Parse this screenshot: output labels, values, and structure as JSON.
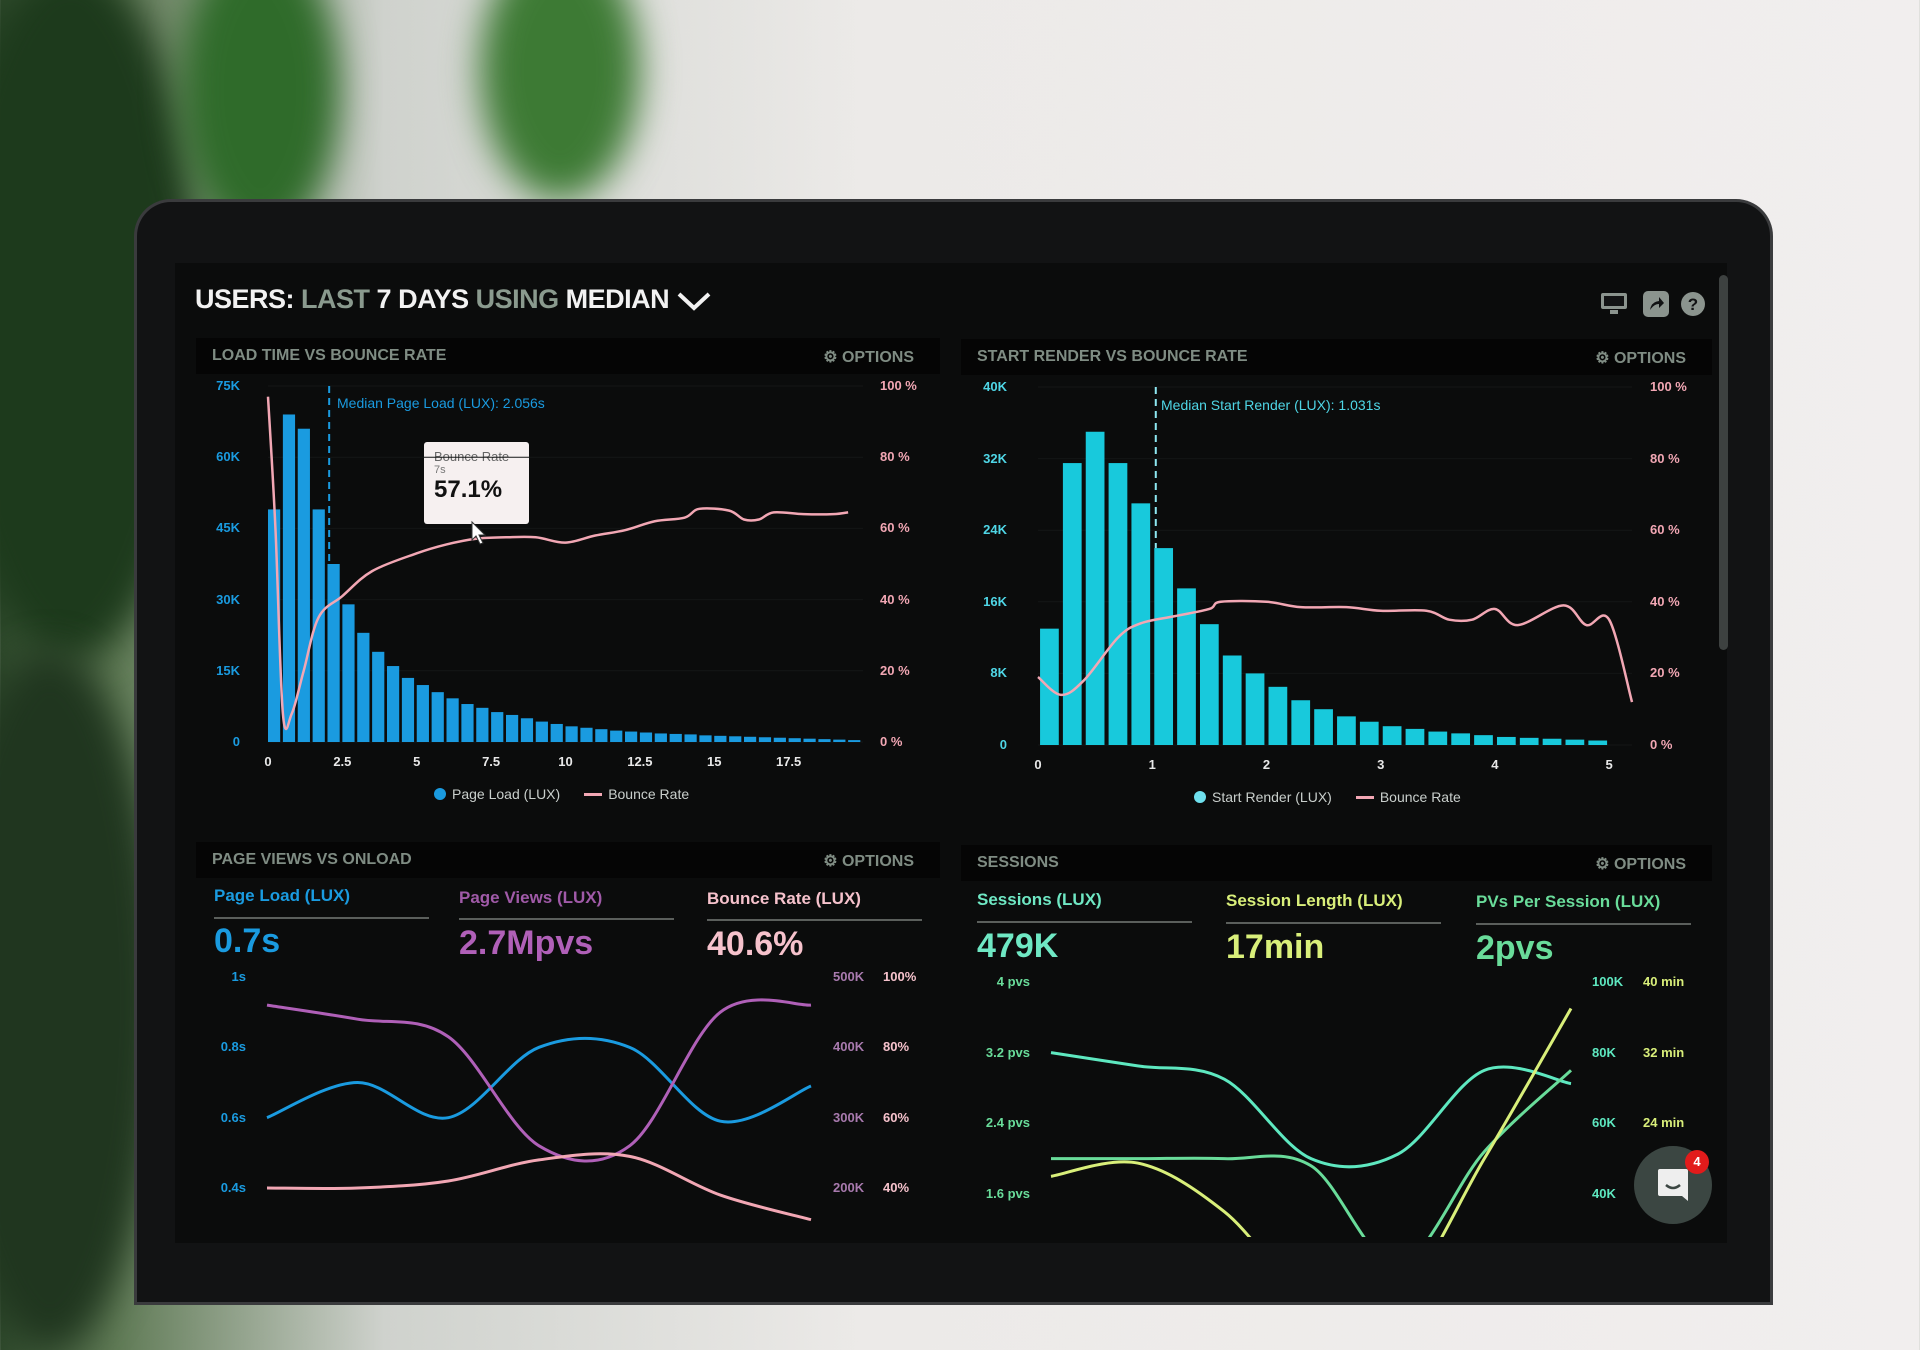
{
  "header": {
    "title_parts": [
      "USERS:",
      "LAST",
      "7 DAYS",
      "USING",
      "MEDIAN"
    ],
    "icons": [
      "monitor-icon",
      "share-icon",
      "help-icon"
    ]
  },
  "colors": {
    "blue": "#1a9be0",
    "cyan": "#18c9dc",
    "pink": "#f2a7b4",
    "purple": "#b060b8",
    "teal": "#5ee8c0",
    "green": "#69dc9a",
    "yellow": "#d9ef7a",
    "muted": "#7f8c83"
  },
  "panels": {
    "load": {
      "title": "LOAD TIME VS BOUNCE RATE",
      "options": "OPTIONS",
      "median": "Median Page Load (LUX): 2.056s",
      "tooltip": {
        "title": "Bounce Rate",
        "sub": "7s",
        "value": "57.1%"
      },
      "legend": [
        "Page Load (LUX)",
        "Bounce Rate"
      ]
    },
    "render": {
      "title": "START RENDER VS BOUNCE RATE",
      "options": "OPTIONS",
      "median": "Median Start Render (LUX): 1.031s",
      "legend": [
        "Start Render (LUX)",
        "Bounce Rate"
      ]
    },
    "views": {
      "title": "PAGE VIEWS VS ONLOAD",
      "options": "OPTIONS",
      "metrics": [
        {
          "label": "Page Load (LUX)",
          "value": "0.7s"
        },
        {
          "label": "Page Views (LUX)",
          "value": "2.7Mpvs"
        },
        {
          "label": "Bounce Rate (LUX)",
          "value": "40.6%"
        }
      ]
    },
    "sessions": {
      "title": "SESSIONS",
      "options": "OPTIONS",
      "metrics": [
        {
          "label": "Sessions (LUX)",
          "value": "479K"
        },
        {
          "label": "Session Length (LUX)",
          "value": "17min"
        },
        {
          "label": "PVs Per Session (LUX)",
          "value": "2pvs"
        }
      ]
    }
  },
  "chat": {
    "badge": "4"
  },
  "chart_data": [
    {
      "type": "bar",
      "title": "LOAD TIME VS BOUNCE RATE",
      "xlim": [
        0,
        20
      ],
      "x_ticks": [
        "0",
        "2.5",
        "5",
        "7.5",
        "10",
        "12.5",
        "15",
        "17.5"
      ],
      "y_left": {
        "ticks": [
          "0",
          "15K",
          "30K",
          "45K",
          "60K",
          "75K"
        ],
        "lim": [
          0,
          75000
        ]
      },
      "y_right": {
        "ticks": [
          "0 %",
          "20 %",
          "40 %",
          "60 %",
          "80 %",
          "100 %"
        ],
        "lim": [
          0,
          100
        ]
      },
      "median_x": 2.056,
      "series": [
        {
          "name": "Page Load (LUX)",
          "type": "bar",
          "x": [
            0,
            0.5,
            1,
            1.5,
            2,
            2.5,
            3,
            3.5,
            4,
            4.5,
            5,
            5.5,
            6,
            6.5,
            7,
            7.5,
            8,
            8.5,
            9,
            9.5,
            10,
            10.5,
            11,
            11.5,
            12,
            12.5,
            13,
            13.5,
            14,
            14.5,
            15,
            15.5,
            16,
            16.5,
            17,
            17.5,
            18,
            18.5,
            19,
            19.5
          ],
          "values": [
            49000,
            69000,
            66000,
            49000,
            37500,
            29000,
            23000,
            19000,
            16000,
            13500,
            12000,
            10500,
            9200,
            8000,
            7200,
            6300,
            5700,
            5000,
            4300,
            3800,
            3300,
            3000,
            2700,
            2400,
            2200,
            2000,
            1800,
            1700,
            1600,
            1400,
            1300,
            1200,
            1100,
            1000,
            900,
            800,
            700,
            600,
            500,
            400
          ]
        },
        {
          "name": "Bounce Rate",
          "type": "line",
          "x": [
            0,
            0.25,
            0.5,
            0.8,
            1.2,
            1.7,
            2.5,
            3.5,
            5,
            6,
            7,
            8,
            9,
            10,
            11,
            12,
            13,
            14,
            14.5,
            15.5,
            16,
            16.5,
            17,
            18,
            19,
            19.5
          ],
          "values": [
            97,
            60,
            8,
            8,
            20,
            35,
            41,
            48,
            53,
            55.5,
            57.1,
            57.5,
            57.5,
            56,
            58,
            59.5,
            62,
            63,
            65.5,
            65,
            62.5,
            62.5,
            64.5,
            64,
            64,
            64.5
          ]
        }
      ]
    },
    {
      "type": "bar",
      "title": "START RENDER VS BOUNCE RATE",
      "xlim": [
        0,
        5.2
      ],
      "x_ticks": [
        "0",
        "1",
        "2",
        "3",
        "4",
        "5"
      ],
      "y_left": {
        "ticks": [
          "0",
          "8K",
          "16K",
          "24K",
          "32K",
          "40K"
        ],
        "lim": [
          0,
          40000
        ]
      },
      "y_right": {
        "ticks": [
          "0 %",
          "20 %",
          "40 %",
          "60 %",
          "80 %",
          "100 %"
        ],
        "lim": [
          0,
          100
        ]
      },
      "median_x": 1.031,
      "series": [
        {
          "name": "Start Render (LUX)",
          "type": "bar",
          "x": [
            0.1,
            0.3,
            0.5,
            0.7,
            0.9,
            1.1,
            1.3,
            1.5,
            1.7,
            1.9,
            2.1,
            2.3,
            2.5,
            2.7,
            2.9,
            3.1,
            3.3,
            3.5,
            3.7,
            3.9,
            4.1,
            4.3,
            4.5,
            4.7,
            4.9
          ],
          "values": [
            13000,
            31500,
            35000,
            31500,
            27000,
            22000,
            17500,
            13500,
            10000,
            8000,
            6500,
            5000,
            4000,
            3200,
            2600,
            2100,
            1800,
            1500,
            1300,
            1100,
            900,
            800,
            700,
            600,
            500
          ]
        },
        {
          "name": "Bounce Rate",
          "type": "line",
          "x": [
            0,
            0.2,
            0.4,
            0.7,
            0.9,
            1.2,
            1.5,
            1.6,
            2,
            2.3,
            2.7,
            3,
            3.4,
            3.6,
            3.8,
            4,
            4.2,
            4.6,
            4.8,
            5,
            5.2
          ],
          "values": [
            19,
            14,
            18,
            30,
            34,
            36,
            38,
            40,
            40,
            38.5,
            38.5,
            37.5,
            37.5,
            35,
            35,
            38,
            33.5,
            39,
            33.5,
            35,
            12
          ]
        }
      ]
    },
    {
      "type": "line",
      "title": "PAGE VIEWS VS ONLOAD",
      "x": [
        0,
        1,
        2,
        3,
        4,
        5,
        6
      ],
      "y_left": {
        "ticks": [
          "0.4s",
          "0.6s",
          "0.8s",
          "1s"
        ],
        "lim": [
          0.4,
          1
        ]
      },
      "y_right_1": {
        "ticks": [
          "200K",
          "300K",
          "400K",
          "500K"
        ],
        "lim": [
          200000,
          500000
        ]
      },
      "y_right_2": {
        "ticks": [
          "40%",
          "60%",
          "80%",
          "100%"
        ],
        "lim": [
          40,
          100
        ]
      },
      "series": [
        {
          "name": "Page Load (LUX)",
          "axis": "left",
          "values": [
            0.6,
            0.7,
            0.6,
            0.8,
            0.8,
            0.59,
            0.69
          ]
        },
        {
          "name": "Page Views (LUX)",
          "axis": "right_1",
          "values": [
            460000,
            440000,
            415000,
            260000,
            260000,
            450000,
            460000
          ]
        },
        {
          "name": "Bounce Rate (LUX)",
          "axis": "right_2",
          "values": [
            40,
            40,
            42,
            48,
            49,
            38,
            31
          ]
        }
      ]
    },
    {
      "type": "line",
      "title": "SESSIONS",
      "x": [
        0,
        1,
        2,
        3,
        4,
        5,
        6
      ],
      "y_left": {
        "ticks": [
          "1.6 pvs",
          "2.4 pvs",
          "3.2 pvs",
          "4 pvs"
        ],
        "lim": [
          1.6,
          4
        ]
      },
      "y_right_1": {
        "ticks": [
          "40K",
          "60K",
          "80K",
          "100K"
        ],
        "lim": [
          40000,
          100000
        ]
      },
      "y_right_2": {
        "ticks": [
          "24 min",
          "32 min",
          "40 min"
        ],
        "lim": [
          16,
          40
        ]
      },
      "series": [
        {
          "name": "PVs Per Session (LUX)",
          "axis": "left",
          "values": [
            3.2,
            3.05,
            2.9,
            2.0,
            2.05,
            3.0,
            2.85
          ]
        },
        {
          "name": "Sessions (LUX)",
          "axis": "right_1",
          "values": [
            50000,
            50000,
            50000,
            48000,
            20000,
            52000,
            75000
          ]
        },
        {
          "name": "Session Length (LUX)",
          "axis": "right_2",
          "values": [
            18,
            19.5,
            14,
            4,
            4,
            20,
            37
          ]
        }
      ]
    }
  ]
}
